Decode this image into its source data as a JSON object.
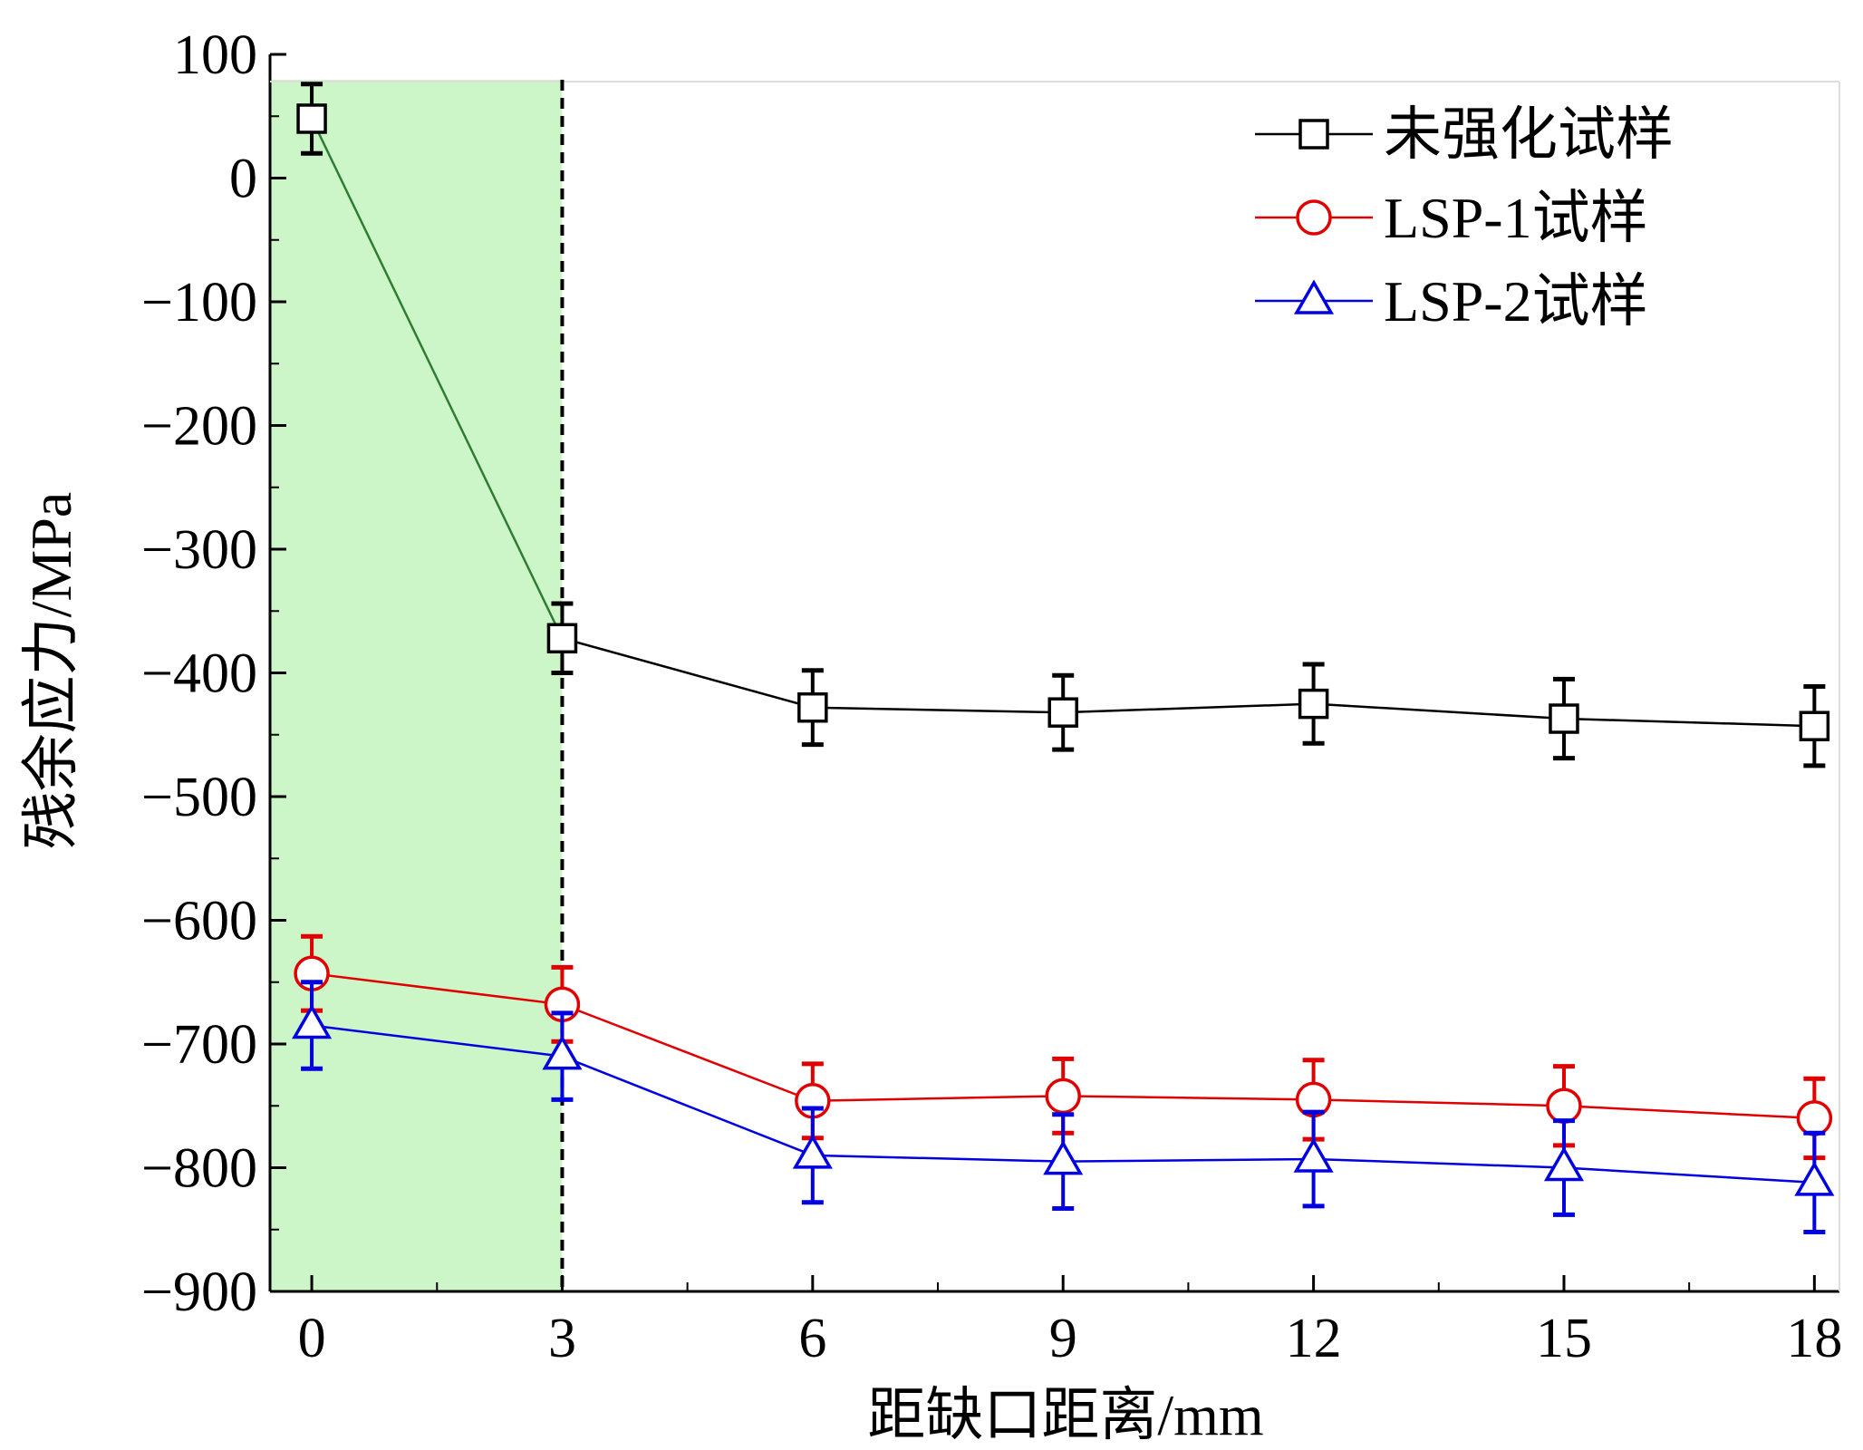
{
  "chart_data": {
    "type": "line",
    "title": "",
    "xlabel": "距缺口距离/mm",
    "ylabel": "残余应力/MPa",
    "x": [
      0,
      3,
      6,
      9,
      12,
      15,
      18
    ],
    "xticks": [
      "0",
      "3",
      "6",
      "9",
      "12",
      "15",
      "18"
    ],
    "xlim": [
      -0.5,
      18.3
    ],
    "yticks": [
      "100",
      "0",
      "−100",
      "−200",
      "−300",
      "−400",
      "−500",
      "−600",
      "−700",
      "−800",
      "−900"
    ],
    "ylim": [
      -900,
      100
    ],
    "grid": false,
    "legend_position": "top-right",
    "highlight_region": {
      "x_from": -0.5,
      "x_to": 3,
      "color": "#ccf5c8"
    },
    "vline": {
      "x": 3,
      "style": "dashed",
      "color": "#000000"
    },
    "series": [
      {
        "name": "未强化试样",
        "marker": "square",
        "color": "#000000",
        "values": [
          48,
          -372,
          -428,
          -432,
          -425,
          -437,
          -443
        ],
        "errors": [
          28,
          28,
          30,
          30,
          32,
          32,
          32
        ],
        "segment_colors": [
          "#2e7d32",
          "#000000",
          "#000000",
          "#000000",
          "#000000",
          "#000000"
        ]
      },
      {
        "name": "LSP-1试样",
        "marker": "circle",
        "color": "#e00000",
        "values": [
          -643,
          -668,
          -746,
          -742,
          -745,
          -750,
          -760
        ],
        "errors": [
          30,
          30,
          30,
          30,
          32,
          32,
          32
        ],
        "segment_colors": [
          "#e00000",
          "#e00000",
          "#e00000",
          "#e00000",
          "#e00000",
          "#e00000"
        ]
      },
      {
        "name": "LSP-2试样",
        "marker": "triangle",
        "color": "#0000e0",
        "values": [
          -685,
          -710,
          -790,
          -795,
          -793,
          -800,
          -812
        ],
        "errors": [
          35,
          35,
          38,
          38,
          38,
          38,
          40
        ],
        "segment_colors": [
          "#0000e0",
          "#0000e0",
          "#0000e0",
          "#0000e0",
          "#0000e0",
          "#0000e0"
        ]
      }
    ]
  }
}
